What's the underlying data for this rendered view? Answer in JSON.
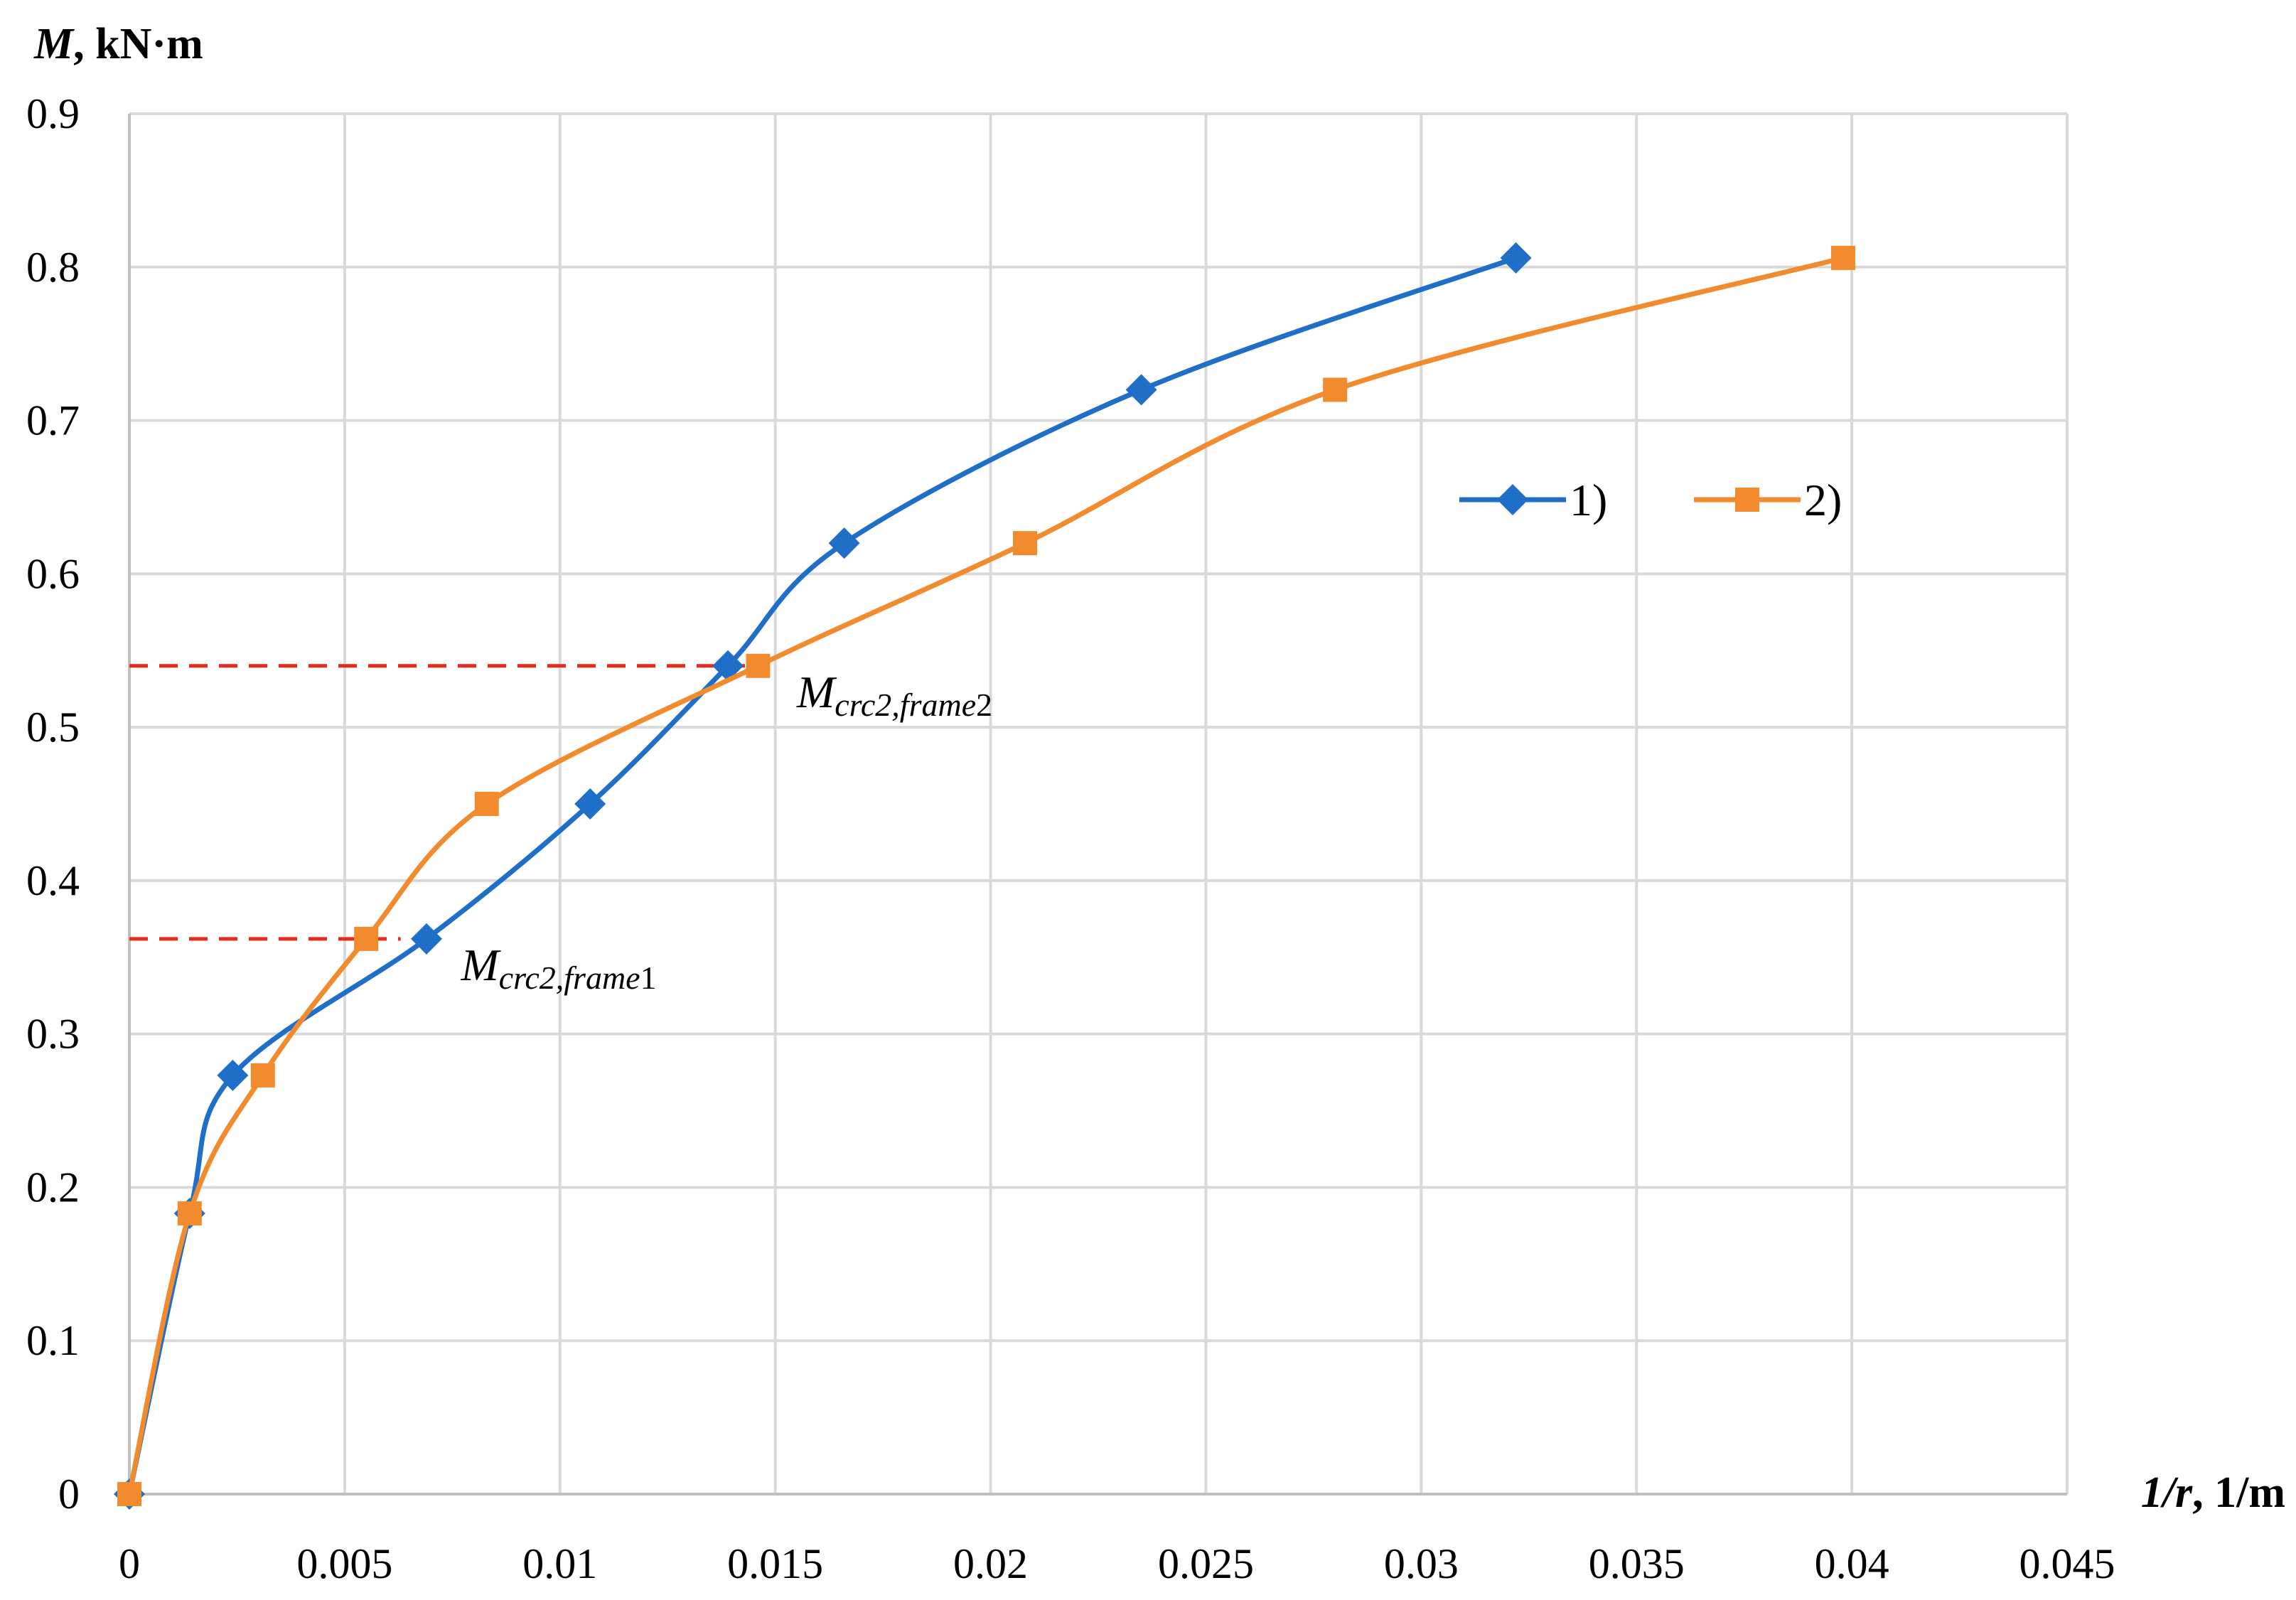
{
  "chart_data": {
    "type": "line",
    "xlabel_italic": "1/r",
    "xlabel_rest": ", 1/m",
    "ylabel_italic": "M",
    "ylabel_rest": ", kN·m",
    "xlim": [
      0,
      0.045
    ],
    "ylim": [
      0,
      0.9
    ],
    "x_ticks": [
      "0",
      "0.005",
      "0.01",
      "0.015",
      "0.02",
      "0.025",
      "0.03",
      "0.035",
      "0.04",
      "0.045"
    ],
    "y_ticks": [
      "0",
      "0.1",
      "0.2",
      "0.3",
      "0.4",
      "0.5",
      "0.6",
      "0.7",
      "0.8",
      "0.9"
    ],
    "grid": true,
    "legend_position": "center-right",
    "series": [
      {
        "name": "1)",
        "color": "#1f6fc8",
        "marker": "diamond",
        "points": [
          [
            0,
            0
          ],
          [
            0.0014,
            0.183
          ],
          [
            0.0024,
            0.273
          ],
          [
            0.0069,
            0.362
          ],
          [
            0.0107,
            0.45
          ],
          [
            0.0139,
            0.54
          ],
          [
            0.0166,
            0.62
          ],
          [
            0.0235,
            0.72
          ],
          [
            0.0322,
            0.806
          ]
        ]
      },
      {
        "name": "2)",
        "color": "#f28a2e",
        "marker": "square",
        "points": [
          [
            0,
            0
          ],
          [
            0.0014,
            0.183
          ],
          [
            0.0031,
            0.273
          ],
          [
            0.0055,
            0.362
          ],
          [
            0.0083,
            0.45
          ],
          [
            0.0146,
            0.54
          ],
          [
            0.0208,
            0.62
          ],
          [
            0.028,
            0.72
          ],
          [
            0.0398,
            0.806
          ]
        ]
      }
    ],
    "reference_lines": [
      {
        "y": 0.362,
        "x_end": 0.0063,
        "color": "#e8291c"
      },
      {
        "y": 0.54,
        "x_end": 0.0146,
        "color": "#e8291c"
      }
    ],
    "annotations": [
      {
        "main": "M",
        "sub": "crc2,",
        "sub_italic": "frame",
        "sub_num": "1",
        "x": 0.0077,
        "y": 0.362
      },
      {
        "main": "M",
        "sub": "crc2,",
        "sub_italic": "frame",
        "sub_num": "2",
        "x": 0.0155,
        "y": 0.54
      }
    ]
  }
}
